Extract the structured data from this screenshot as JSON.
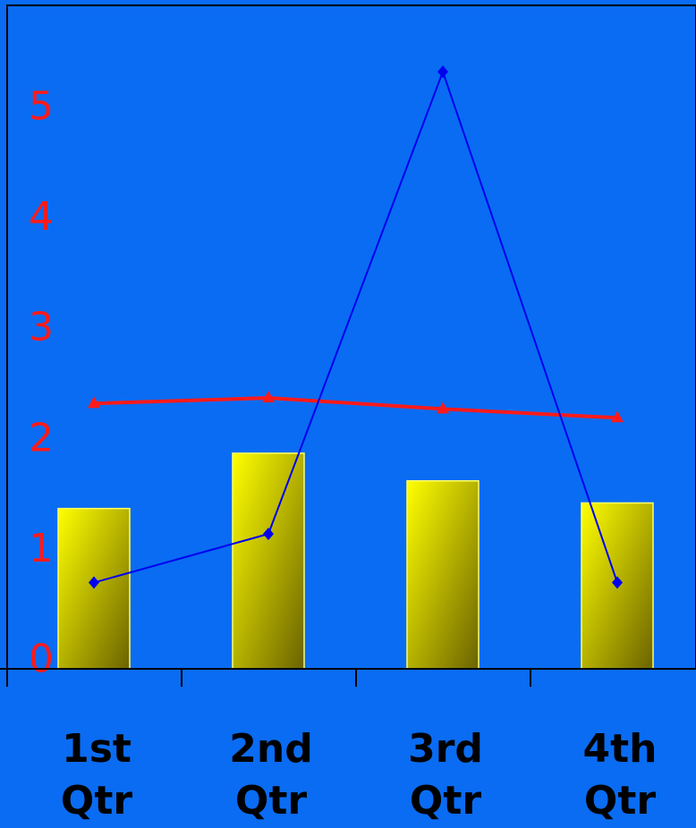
{
  "chart_data": {
    "type": "bar",
    "categories": [
      "1st Qtr",
      "2nd Qtr",
      "3rd Qtr",
      "4th Qtr"
    ],
    "series": [
      {
        "kind": "bar",
        "values": [
          1.95,
          2.45,
          2.2,
          2.0
        ]
      },
      {
        "kind": "line",
        "marker": "triangle",
        "values": [
          2.9,
          2.95,
          2.85,
          2.77
        ]
      },
      {
        "kind": "line",
        "marker": "diamond",
        "values": [
          1.28,
          1.72,
          5.9,
          1.28
        ]
      }
    ],
    "ylim": [
      0.5,
      6.5
    ],
    "yticks": [
      "0",
      "1",
      "2",
      "3",
      "4",
      "5"
    ],
    "title": "",
    "xlabel": "",
    "ylabel": "",
    "grid": false,
    "legend": "none"
  },
  "colors": {
    "background": "#0a6cf2",
    "bar_light": "#ffff00",
    "bar_dark": "#6b6300",
    "triangle_series": "#ff1a1a",
    "diamond_series": "#0000ee",
    "ytick_text": "#ff1a1a",
    "xtick_text": "#000000",
    "axis": "#000000"
  }
}
